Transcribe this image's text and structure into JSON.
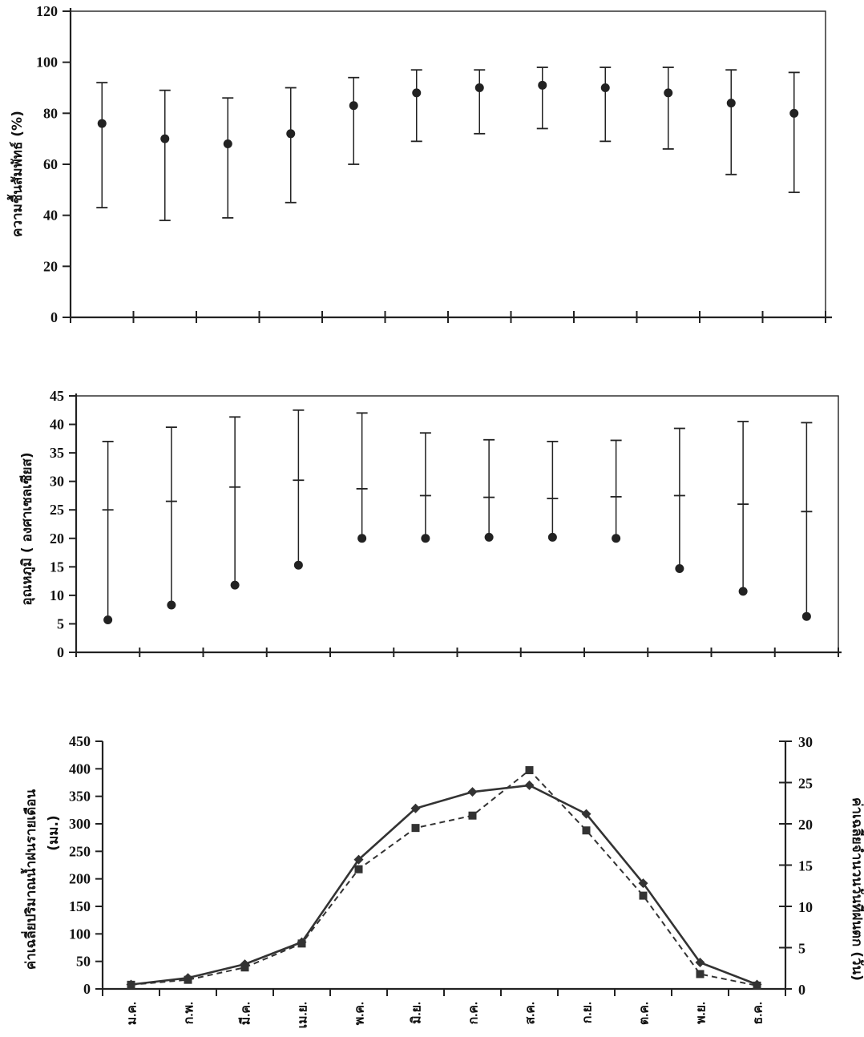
{
  "chart_data": [
    {
      "type": "scatter",
      "variant": "error-bar",
      "ylabel": "ความชื้นสัมพัทธ์ (%)",
      "xlabel": "",
      "ylim": [
        0,
        120
      ],
      "yticks": [
        0,
        20,
        40,
        60,
        80,
        100,
        120
      ],
      "x_count": 12,
      "grid": false,
      "points": [
        {
          "mean": 76,
          "low": 43,
          "high": 92
        },
        {
          "mean": 70,
          "low": 38,
          "high": 89
        },
        {
          "mean": 68,
          "low": 39,
          "high": 86
        },
        {
          "mean": 72,
          "low": 45,
          "high": 90
        },
        {
          "mean": 83,
          "low": 60,
          "high": 94
        },
        {
          "mean": 88,
          "low": 69,
          "high": 97
        },
        {
          "mean": 90,
          "low": 72,
          "high": 97
        },
        {
          "mean": 91,
          "low": 74,
          "high": 98
        },
        {
          "mean": 90,
          "low": 69,
          "high": 98
        },
        {
          "mean": 88,
          "low": 66,
          "high": 98
        },
        {
          "mean": 84,
          "low": 56,
          "high": 97
        },
        {
          "mean": 80,
          "low": 49,
          "high": 96
        }
      ]
    },
    {
      "type": "scatter",
      "variant": "range-with-mean",
      "ylabel": "อุณหภูมิ ( องศาเซลเซียส)",
      "xlabel": "",
      "ylim": [
        0,
        45
      ],
      "yticks": [
        0,
        5,
        10,
        15,
        20,
        25,
        30,
        35,
        40,
        45
      ],
      "x_count": 12,
      "grid": false,
      "points": [
        {
          "min": 5.7,
          "mean": 25.0,
          "max": 37.0
        },
        {
          "min": 8.3,
          "mean": 26.5,
          "max": 39.5
        },
        {
          "min": 11.8,
          "mean": 29.0,
          "max": 41.3
        },
        {
          "min": 15.3,
          "mean": 30.2,
          "max": 42.5
        },
        {
          "min": 20.0,
          "mean": 28.7,
          "max": 42.0
        },
        {
          "min": 20.0,
          "mean": 27.5,
          "max": 38.5
        },
        {
          "min": 20.2,
          "mean": 27.2,
          "max": 37.3
        },
        {
          "min": 20.2,
          "mean": 27.0,
          "max": 37.0
        },
        {
          "min": 20.0,
          "mean": 27.3,
          "max": 37.2
        },
        {
          "min": 14.7,
          "mean": 27.5,
          "max": 39.3
        },
        {
          "min": 10.7,
          "mean": 26.0,
          "max": 40.5
        },
        {
          "min": 6.3,
          "mean": 24.7,
          "max": 40.3
        }
      ]
    },
    {
      "type": "line",
      "categories": [
        "ม.ค.",
        "ก.พ.",
        "มี.ค.",
        "เม.ย.",
        "พ.ค.",
        "มิ.ย.",
        "ก.ค.",
        "ส.ค.",
        "ก.ย.",
        "ต.ค.",
        "พ.ย.",
        "ธ.ค."
      ],
      "ylabel": "ค่าเฉลี่ยปริมาณน้ำฝนรายเดือน (มม.)",
      "ylabel_lines": [
        "ค่าเฉลี่ยปริมาณน้ำฝนรายเดือน",
        "(มม.)"
      ],
      "y2label": "ค่าเฉลี่ยจำนวนวันที่ฝนตก (วัน)",
      "ylim": [
        0,
        450
      ],
      "yticks": [
        0,
        50,
        100,
        150,
        200,
        250,
        300,
        350,
        400,
        450
      ],
      "y2lim": [
        0,
        30
      ],
      "y2ticks": [
        0,
        5,
        10,
        15,
        20,
        25,
        30
      ],
      "grid": false,
      "series": [
        {
          "axis": "left",
          "style": "solid",
          "marker": "diamond",
          "values": [
            8,
            20,
            45,
            85,
            235,
            328,
            358,
            370,
            318,
            192,
            48,
            8
          ]
        },
        {
          "axis": "right",
          "style": "dashed",
          "marker": "square",
          "values": [
            0.5,
            1.1,
            2.6,
            5.5,
            14.5,
            19.5,
            21.0,
            26.5,
            19.2,
            11.3,
            1.8,
            0.4
          ]
        }
      ]
    }
  ]
}
